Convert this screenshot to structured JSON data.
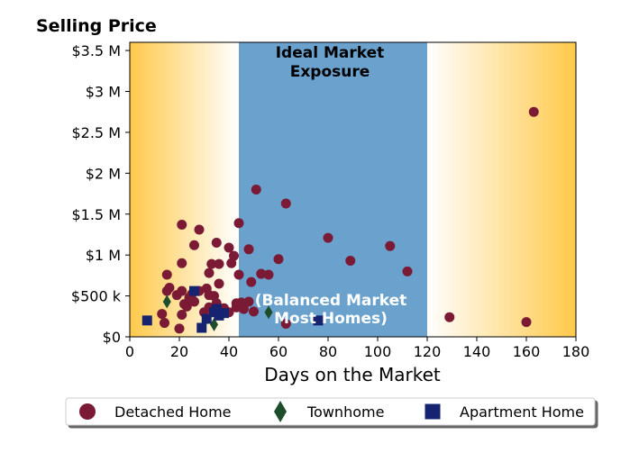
{
  "chart_data": {
    "type": "scatter",
    "ylabel": "Selling Price",
    "xlabel": "Days on the Market",
    "xlim": [
      0,
      180
    ],
    "ylim": [
      0,
      3600000
    ],
    "x_ticks": [
      0,
      20,
      40,
      60,
      80,
      100,
      120,
      140,
      160,
      180
    ],
    "y_ticks": [
      0,
      500000,
      1000000,
      1500000,
      2000000,
      2500000,
      3000000,
      3500000
    ],
    "y_tick_labels": [
      "$0",
      "$500 k",
      "$1 M",
      "$1.5 M",
      "$2 M",
      "$2.5 M",
      "$3 M",
      "$3.5 M"
    ],
    "grid": false,
    "legend_position": "bottom",
    "regions": [
      {
        "label_lines": [
          "Ideal Market",
          "Exposure"
        ],
        "x_range": [
          44,
          120
        ],
        "color": "#6aa1cd",
        "text_color": "#000000"
      },
      {
        "label_lines": [
          "(Balanced Market",
          "Most Homes)"
        ],
        "x_range": [
          0,
          180
        ],
        "color": "#ffc94a",
        "text_color": "#ffffff"
      }
    ],
    "series": [
      {
        "name": "Detached Home",
        "marker": "circle",
        "color": "#7b1a35",
        "points": [
          [
            13,
            280000
          ],
          [
            14,
            170000
          ],
          [
            15,
            760000
          ],
          [
            15,
            560000
          ],
          [
            16,
            600000
          ],
          [
            19,
            510000
          ],
          [
            20,
            100000
          ],
          [
            21,
            560000
          ],
          [
            21,
            900000
          ],
          [
            21,
            270000
          ],
          [
            21,
            1370000
          ],
          [
            22,
            400000
          ],
          [
            23,
            370000
          ],
          [
            24,
            480000
          ],
          [
            25,
            520000
          ],
          [
            26,
            1120000
          ],
          [
            26,
            430000
          ],
          [
            28,
            1310000
          ],
          [
            28,
            560000
          ],
          [
            30,
            300000
          ],
          [
            31,
            590000
          ],
          [
            32,
            780000
          ],
          [
            32,
            510000
          ],
          [
            32,
            360000
          ],
          [
            33,
            890000
          ],
          [
            34,
            500000
          ],
          [
            34,
            350000
          ],
          [
            35,
            1150000
          ],
          [
            35,
            410000
          ],
          [
            36,
            650000
          ],
          [
            36,
            890000
          ],
          [
            38,
            350000
          ],
          [
            40,
            1090000
          ],
          [
            40,
            300000
          ],
          [
            41,
            900000
          ],
          [
            42,
            990000
          ],
          [
            43,
            360000
          ],
          [
            43,
            410000
          ],
          [
            44,
            760000
          ],
          [
            44,
            1390000
          ],
          [
            45,
            420000
          ],
          [
            46,
            340000
          ],
          [
            48,
            1070000
          ],
          [
            48,
            430000
          ],
          [
            49,
            670000
          ],
          [
            50,
            310000
          ],
          [
            51,
            1800000
          ],
          [
            53,
            770000
          ],
          [
            56,
            760000
          ],
          [
            60,
            950000
          ],
          [
            63,
            1630000
          ],
          [
            63,
            160000
          ],
          [
            80,
            1210000
          ],
          [
            89,
            930000
          ],
          [
            105,
            1110000
          ],
          [
            112,
            800000
          ],
          [
            129,
            240000
          ],
          [
            160,
            180000
          ],
          [
            163,
            2750000
          ]
        ]
      },
      {
        "name": "Townhome",
        "marker": "diamond",
        "color": "#1e4d2b",
        "points": [
          [
            15,
            430000
          ],
          [
            34,
            150000
          ],
          [
            56,
            300000
          ]
        ]
      },
      {
        "name": "Apartment Home",
        "marker": "square",
        "color": "#152370",
        "points": [
          [
            7,
            200000
          ],
          [
            26,
            560000
          ],
          [
            29,
            110000
          ],
          [
            31,
            220000
          ],
          [
            34,
            300000
          ],
          [
            35,
            340000
          ],
          [
            36,
            260000
          ],
          [
            38,
            290000
          ],
          [
            76,
            200000
          ]
        ]
      }
    ]
  }
}
